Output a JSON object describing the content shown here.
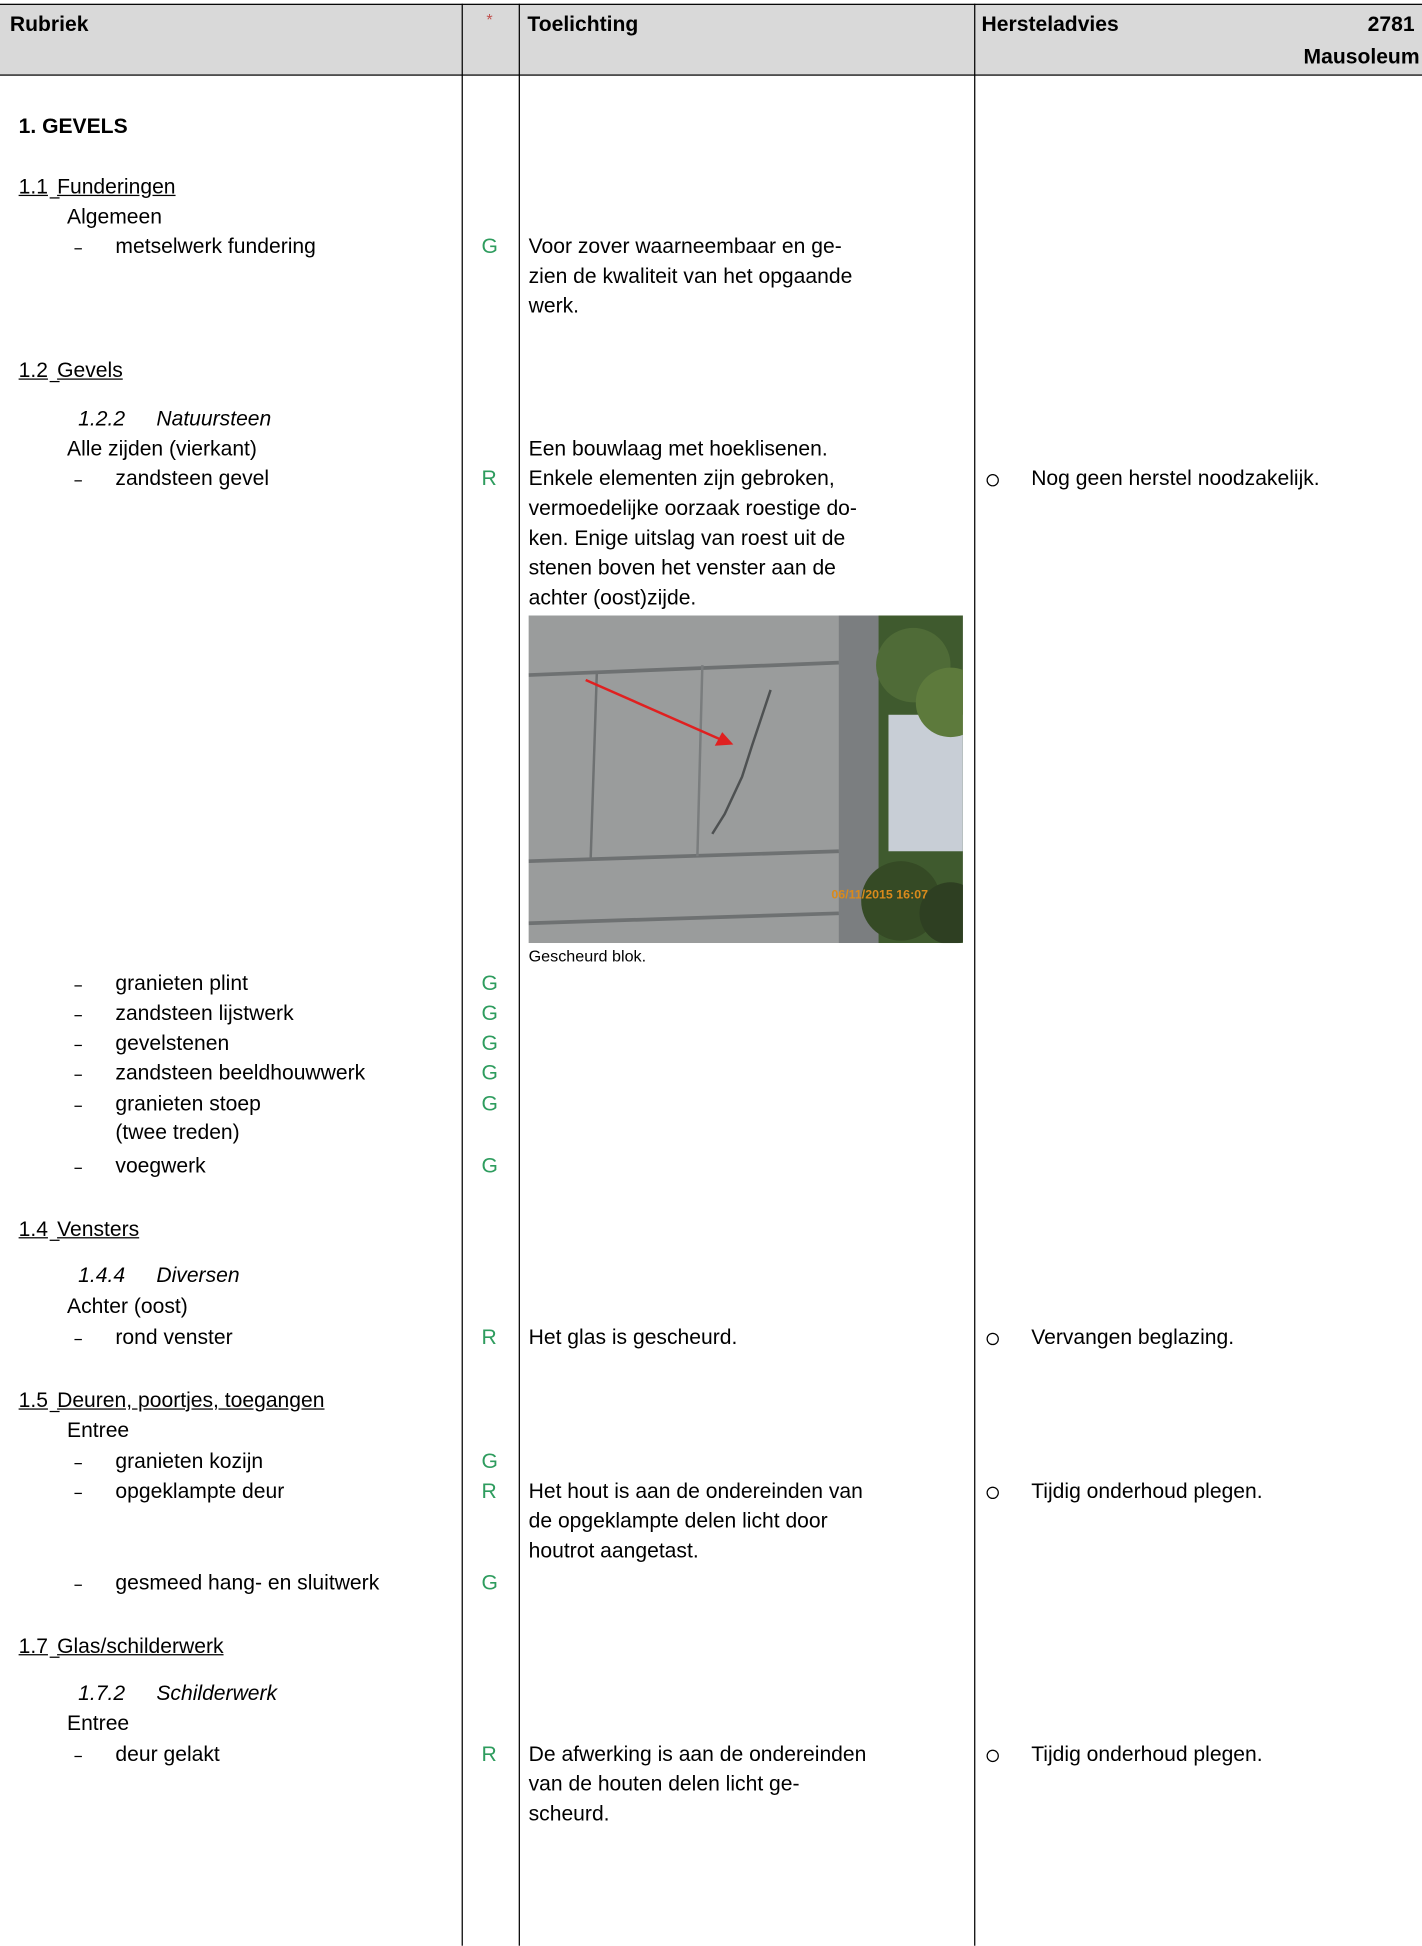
{
  "header": {
    "rubriek": "Rubriek",
    "star": "*",
    "toelichting": "Toelichting",
    "hersteladvies": "Hersteladvies",
    "number": "2781",
    "name": "Mausoleum"
  },
  "rows": [
    {
      "section": "1. GEVELS"
    },
    {
      "number": "1.1",
      "title": "Funderingen"
    },
    {
      "group": "Algemeen"
    },
    {
      "item": "metselwerk fundering",
      "rating": "G",
      "toelichting": [
        "Voor zover waarneembaar en ge-",
        "zien de kwaliteit van het opgaande",
        "werk."
      ]
    },
    {
      "number": "1.2",
      "title": "Gevels"
    },
    {
      "subnumber": "1.2.2",
      "subtitle": "Natuursteen"
    },
    {
      "group": "Alle zijden (vierkant)",
      "toelichting": [
        "Een bouwlaag met hoeklisenen."
      ]
    },
    {
      "item": "zandsteen gevel",
      "rating": "R",
      "toelichting": [
        "Enkele elementen zijn gebroken,",
        "vermoedelijke oorzaak roestige do-",
        "ken. Enige uitslag van roest uit de",
        "stenen boven het venster aan de",
        "achter (oost)zijde."
      ],
      "advies": "Nog geen herstel noodzakelijk."
    },
    {
      "photo": {
        "stamp": "06/11/2015 16:07",
        "caption": "Gescheurd blok."
      }
    },
    {
      "item": "granieten plint",
      "rating": "G"
    },
    {
      "item": "zandsteen lijstwerk",
      "rating": "G"
    },
    {
      "item": "gevelstenen",
      "rating": "G"
    },
    {
      "item": "zandsteen beeldhouwwerk",
      "rating": "G"
    },
    {
      "item": "granieten stoep",
      "rating": "G"
    },
    {
      "continuation": "(twee treden)"
    },
    {
      "item": "voegwerk",
      "rating": "G"
    },
    {
      "number": "1.4",
      "title": "Vensters"
    },
    {
      "subnumber": "1.4.4",
      "subtitle": "Diversen"
    },
    {
      "group": "Achter (oost)"
    },
    {
      "item": "rond venster",
      "rating": "R",
      "toelichting": [
        "Het glas is gescheurd."
      ],
      "advies": "Vervangen beglazing."
    },
    {
      "number": "1.5",
      "title": "Deuren, poortjes, toegangen"
    },
    {
      "group": "Entree"
    },
    {
      "item": "granieten kozijn",
      "rating": "G"
    },
    {
      "item": "opgeklampte deur",
      "rating": "R",
      "toelichting": [
        "Het hout is aan de ondereinden van",
        "de opgeklampte delen licht door",
        "houtrot aangetast."
      ],
      "advies": "Tijdig onderhoud plegen."
    },
    {
      "item": "gesmeed hang- en sluitwerk",
      "rating": "G"
    },
    {
      "number": "1.7",
      "title": "Glas/schilderwerk"
    },
    {
      "subnumber": "1.7.2",
      "subtitle": "Schilderwerk"
    },
    {
      "group": "Entree"
    },
    {
      "item": "deur gelakt",
      "rating": "R",
      "toelichting": [
        "De afwerking is aan de ondereinden",
        "van de houten delen licht ge-",
        "scheurd."
      ],
      "advies": "Tijdig onderhoud plegen."
    }
  ]
}
